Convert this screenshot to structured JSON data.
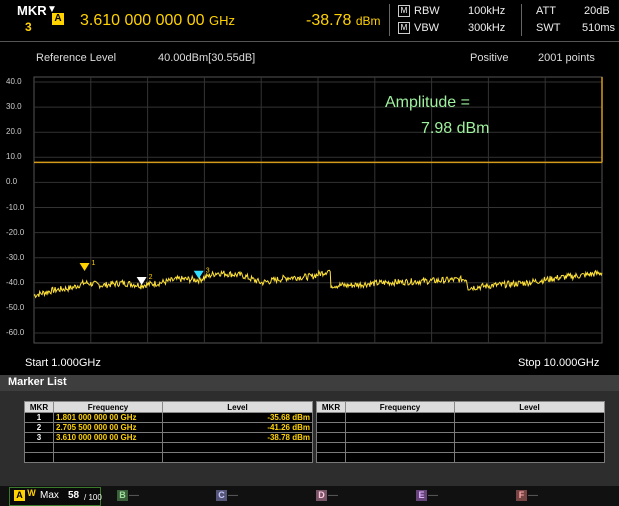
{
  "marker": {
    "label": "MKR",
    "arrow": "▼",
    "number": "3",
    "trace": "A",
    "frequency": "3.610 000 000 00",
    "frequency_unit": "GHz",
    "amplitude": "-38.78",
    "amplitude_unit": "dBm"
  },
  "settings": {
    "rbw_badge": "M",
    "rbw_label": "RBW",
    "rbw_value": "100kHz",
    "vbw_badge": "M",
    "vbw_label": "VBW",
    "vbw_value": "300kHz",
    "att_label": "ATT",
    "att_value": "20dB",
    "swt_label": "SWT",
    "swt_value": "510ms"
  },
  "info": {
    "ref_label": "Reference Level",
    "ref_value": "40.00dBm[30.55dB]",
    "detector": "Positive",
    "points": "2001 points"
  },
  "chart_data": {
    "type": "line",
    "ylim": [
      -65,
      45
    ],
    "y_ticks": [
      "40.0",
      "30.0",
      "20.0",
      "10.0",
      "0.0",
      "-10.0",
      "-20.0",
      "-30.0",
      "-40.0",
      "-50.0",
      "-60.0"
    ],
    "xlim": [
      1.0,
      10.0
    ],
    "x_start_label": "Start 1.000GHz",
    "x_stop_label": "Stop 10.000GHz",
    "threshold_dbm": 7.98,
    "annotation_line1": "Amplitude =",
    "annotation_line2": "7.98 dBm",
    "series": [
      {
        "x": [
          1.0,
          1.3,
          1.6,
          1.8,
          2.1,
          2.4,
          2.7,
          3.0,
          3.3,
          3.61,
          3.9,
          4.3,
          4.6,
          5.0,
          5.4,
          5.69,
          5.7,
          6.0,
          6.5,
          7.0,
          7.5,
          7.86,
          7.87,
          8.3,
          8.8,
          9.3,
          9.7,
          10.0
        ],
        "values": [
          -45,
          -43,
          -42,
          -40,
          -41,
          -40,
          -41,
          -40,
          -38.5,
          -38.8,
          -36,
          -37,
          -40,
          -38,
          -37.5,
          -35,
          -41,
          -41,
          -40,
          -39.5,
          -39,
          -38.5,
          -42,
          -41,
          -40,
          -38,
          -37,
          -36
        ]
      }
    ],
    "markers": [
      {
        "id": "1",
        "x": 1.801,
        "y": -35.68
      },
      {
        "id": "2",
        "x": 2.7055,
        "y": -41.26
      },
      {
        "id": "3",
        "x": 3.61,
        "y": -38.78
      }
    ]
  },
  "marker_list": {
    "title": "Marker List",
    "headers": [
      "MKR",
      "Frequency",
      "Level"
    ],
    "rows": [
      [
        "1",
        "1.801 000 000 00 GHz",
        "-35.68 dBm"
      ],
      [
        "2",
        "2.705 500 000 00 GHz",
        "-41.26 dBm"
      ],
      [
        "3",
        "3.610 000 000 00 GHz",
        "-38.78 dBm"
      ]
    ]
  },
  "footer": {
    "trace_a": "A",
    "trace_a_mode": "W",
    "mode": "Max",
    "count": "58",
    "total": "/ 100",
    "trace_b": "B",
    "trace_c": "C",
    "trace_d": "D",
    "trace_e": "E",
    "trace_f": "F",
    "dash": "—",
    "colors": {
      "a": "#ffd200",
      "b": "#5fbf4f",
      "c": "#b8b8ff",
      "d": "#ffb3d9",
      "e": "#cc66ff",
      "f": "#ff3333"
    }
  }
}
